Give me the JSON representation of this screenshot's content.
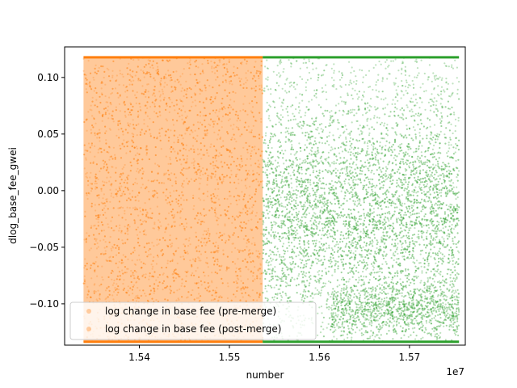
{
  "chart_data": {
    "type": "scatter",
    "xlabel": "number",
    "ylabel": "dlog_base_fee_gwei",
    "x_offset_label": "1e7",
    "xlim": [
      15317000,
      15762000
    ],
    "ylim": [
      -0.1365,
      0.127
    ],
    "x_ticks": [
      15400000,
      15500000,
      15600000,
      15700000
    ],
    "x_tick_labels": [
      "1.54",
      "1.55",
      "1.56",
      "1.57"
    ],
    "y_ticks": [
      -0.1,
      -0.05,
      0.0,
      0.05,
      0.1
    ],
    "y_tick_labels": [
      "−0.10",
      "−0.05",
      "0.00",
      "0.05",
      "0.10"
    ],
    "grid": false,
    "legend_position": "lower-left",
    "series": [
      {
        "name": "log change in base fee (pre-merge)",
        "color": "#ff7f0e",
        "x_range": [
          15338000,
          15537000
        ],
        "upper_bound": 0.1178,
        "lower_bound": -0.1335,
        "distribution": "uniform"
      },
      {
        "name": "log change in base fee (post-merge)",
        "color": "#2ca02c",
        "x_range": [
          15537000,
          15755000
        ],
        "upper_bound": 0.1178,
        "lower_bound": -0.1335,
        "distribution": "dense band near -0.02, sparse band near -0.1"
      }
    ]
  }
}
